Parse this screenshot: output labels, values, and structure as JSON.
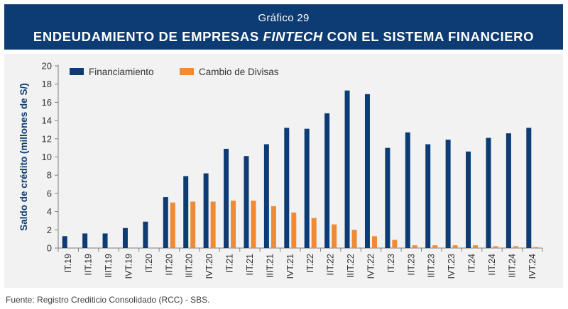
{
  "header": {
    "subtitle": "Gráfico 29",
    "title_part1": "ENDEUDAMIENTO DE EMPRESAS ",
    "title_italic": "FINTECH",
    "title_part2": " CON EL SISTEMA FINANCIERO"
  },
  "colors": {
    "header_bg": "#0d3c74",
    "financiamiento": "#0d3c74",
    "cambio_divisas": "#f08a34"
  },
  "chart_data": {
    "type": "bar",
    "ylabel": "Saldo de crédito (millones de S/)",
    "xlabel": "",
    "ylim": [
      0,
      20
    ],
    "yticks": [
      0,
      2,
      4,
      6,
      8,
      10,
      12,
      14,
      16,
      18,
      20
    ],
    "grid": false,
    "legend_position": "top-left",
    "categories": [
      "IT.19",
      "IIT.19",
      "IIIT.19",
      "IVT.19",
      "IT.20",
      "IIT.20",
      "IIIT.20",
      "IVT.20",
      "IT.21",
      "IIT.21",
      "IIIT.21",
      "IVT.21",
      "IT.22",
      "IIT.22",
      "IIIT.22",
      "IVT.22",
      "IT.23",
      "IIT.23",
      "IIIT.23",
      "IVT.23",
      "IT.24",
      "IIT.24",
      "IIIT.24",
      "IVT.24"
    ],
    "series": [
      {
        "name": "Financiamiento",
        "color": "#0d3c74",
        "values": [
          1.3,
          1.6,
          1.6,
          2.2,
          2.9,
          5.6,
          7.9,
          8.2,
          10.9,
          10.1,
          11.4,
          13.2,
          13.1,
          14.8,
          17.3,
          16.9,
          11.0,
          12.7,
          11.4,
          11.9,
          10.6,
          12.1,
          12.6,
          13.2
        ]
      },
      {
        "name": "Cambio de Divisas",
        "color": "#f08a34",
        "values": [
          0,
          0,
          0,
          0,
          0,
          5.0,
          5.1,
          5.1,
          5.2,
          5.2,
          4.6,
          3.9,
          3.3,
          2.6,
          2.0,
          1.3,
          0.9,
          0.3,
          0.3,
          0.3,
          0.3,
          0.2,
          0.2,
          0.1
        ]
      }
    ]
  },
  "footer": {
    "source": "Fuente: Registro Crediticio Consolidado (RCC) - SBS."
  }
}
